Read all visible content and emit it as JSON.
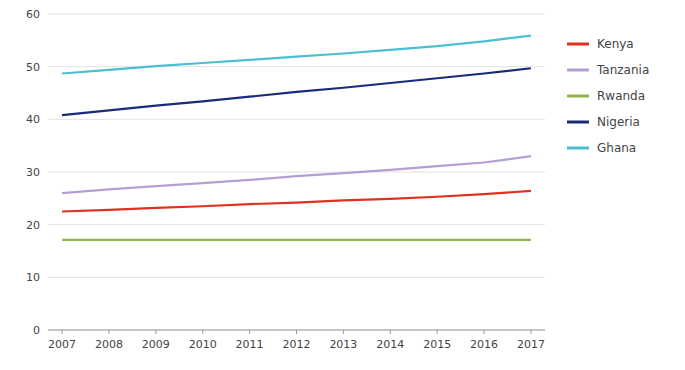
{
  "chart_data": {
    "type": "line",
    "x": [
      2007,
      2008,
      2009,
      2010,
      2011,
      2012,
      2013,
      2014,
      2015,
      2016,
      2017
    ],
    "series": [
      {
        "name": "Kenya",
        "color": "#e03020",
        "values": [
          22.5,
          22.8,
          23.2,
          23.5,
          23.9,
          24.2,
          24.6,
          24.9,
          25.3,
          25.8,
          26.4
        ]
      },
      {
        "name": "Tanzania",
        "color": "#b39fd4",
        "values": [
          26.0,
          26.7,
          27.3,
          27.9,
          28.5,
          29.2,
          29.8,
          30.4,
          31.1,
          31.8,
          33.0
        ]
      },
      {
        "name": "Rwanda",
        "color": "#92b44c",
        "values": [
          17.1,
          17.1,
          17.1,
          17.1,
          17.1,
          17.1,
          17.1,
          17.1,
          17.1,
          17.1,
          17.1
        ]
      },
      {
        "name": "Nigeria",
        "color": "#1a2a7a",
        "values": [
          40.8,
          41.7,
          42.6,
          43.4,
          44.3,
          45.2,
          46.0,
          46.9,
          47.8,
          48.7,
          49.7
        ]
      },
      {
        "name": "Ghana",
        "color": "#4bbfcf",
        "values": [
          48.7,
          49.4,
          50.1,
          50.7,
          51.3,
          51.9,
          52.5,
          53.2,
          53.9,
          54.8,
          55.9
        ]
      }
    ],
    "xlim": [
      2006.7,
      2017.3
    ],
    "xticks": [
      2007,
      2008,
      2009,
      2010,
      2011,
      2012,
      2013,
      2014,
      2015,
      2016,
      2017
    ],
    "ylim": [
      0,
      60
    ],
    "yticks": [
      0,
      10,
      20,
      30,
      40,
      50,
      60
    ],
    "grid": true,
    "legend": "right"
  }
}
